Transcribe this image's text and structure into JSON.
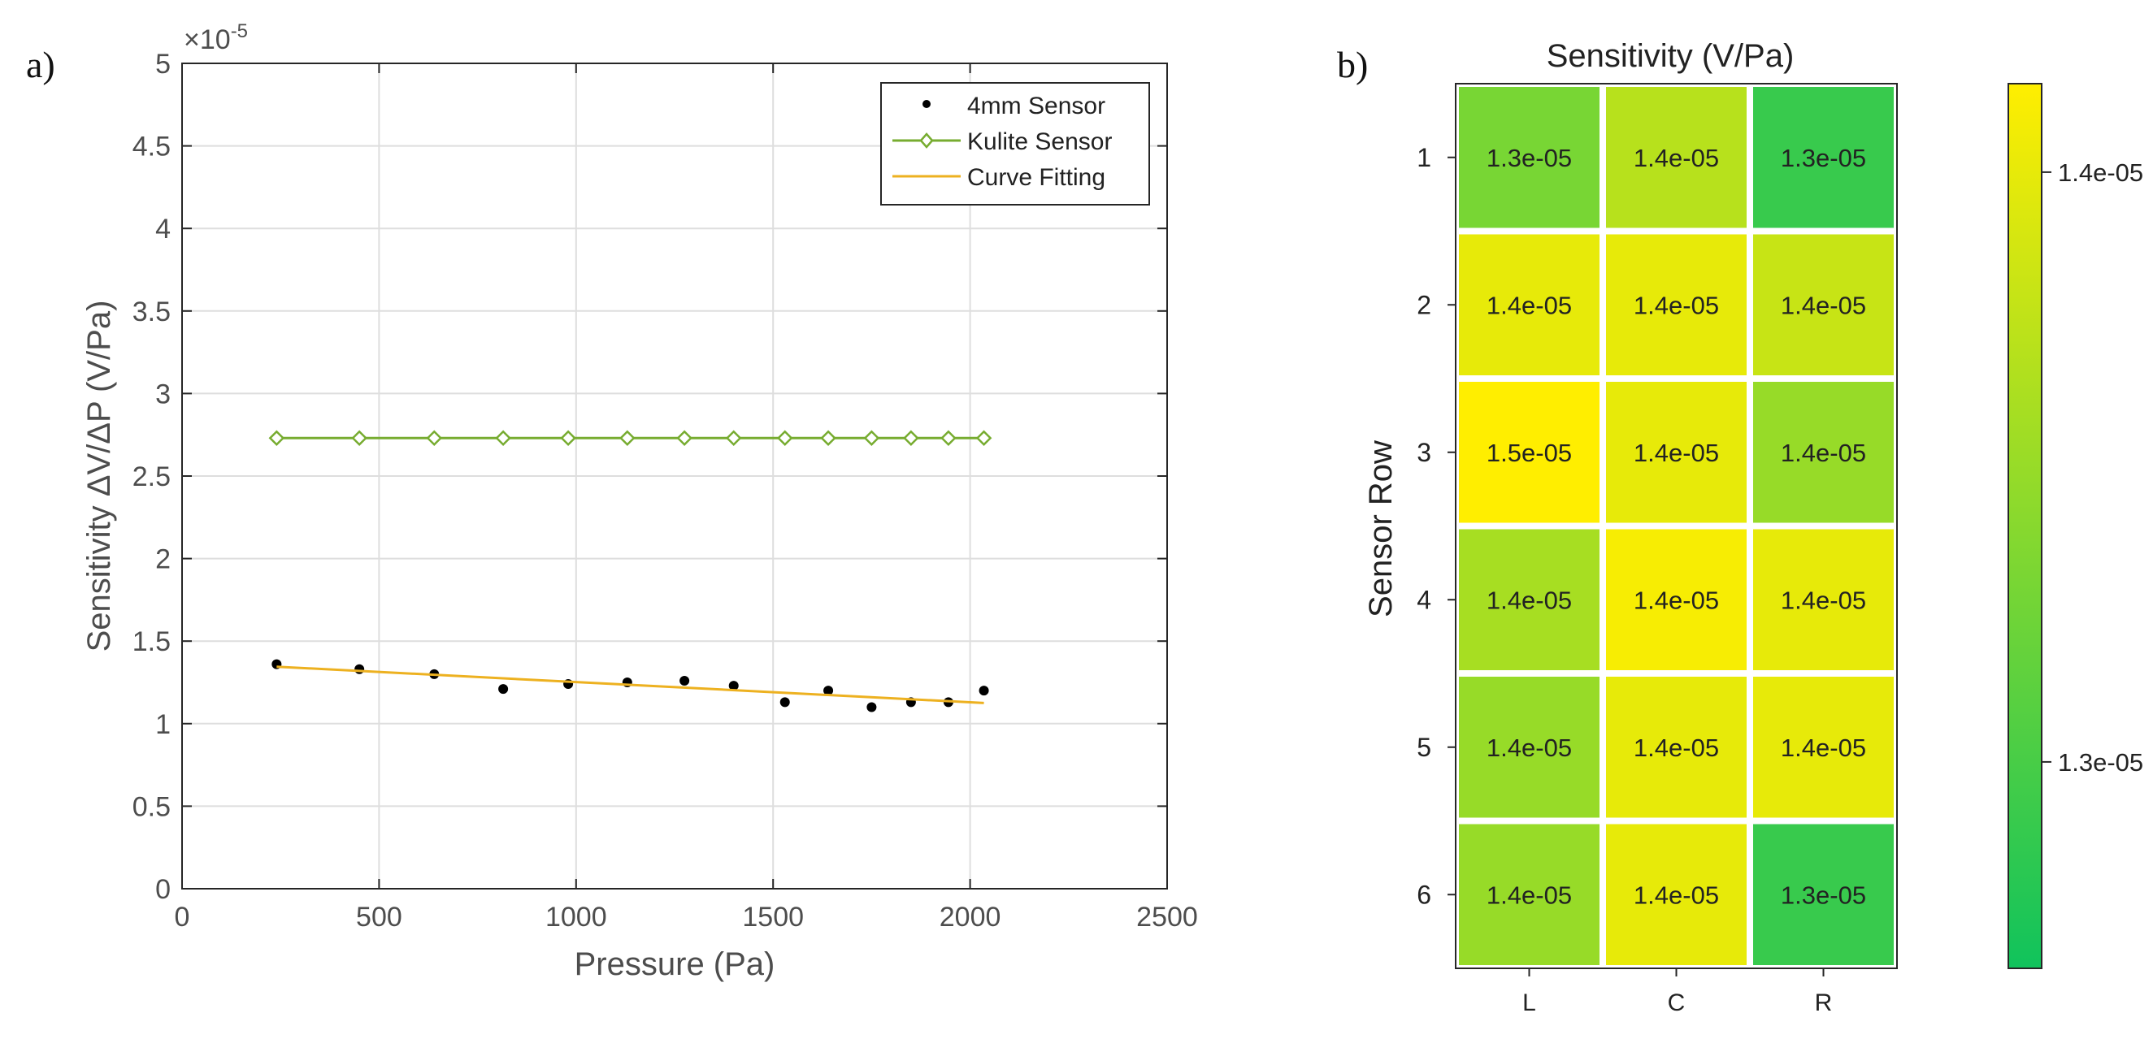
{
  "panel_a": {
    "label": "a)"
  },
  "panel_b": {
    "label": "b)"
  },
  "chart_data": [
    {
      "type": "line",
      "exponent_label": "×10",
      "exponent_power": "-5",
      "xlabel": "Pressure (Pa)",
      "ylabel": "Sensitivity  ΔV/ΔP (V/Pa)",
      "xlim": [
        0,
        2500
      ],
      "ylim": [
        0,
        5
      ],
      "grid": true,
      "legend_position": "top-right",
      "x_ticks": [
        0,
        500,
        1000,
        1500,
        2000,
        2500
      ],
      "x_tick_labels": [
        "0",
        "500",
        "1000",
        "1500",
        "2000",
        "2500"
      ],
      "y_ticks": [
        0,
        0.5,
        1,
        1.5,
        2,
        2.5,
        3,
        3.5,
        4,
        4.5,
        5
      ],
      "y_tick_labels": [
        "0",
        "0.5",
        "1",
        "1.5",
        "2",
        "2.5",
        "3",
        "3.5",
        "4",
        "4.5",
        "5"
      ],
      "series": [
        {
          "name": "4mm Sensor",
          "style": "markers",
          "color": "#000000",
          "x": [
            240,
            450,
            640,
            815,
            980,
            1130,
            1275,
            1400,
            1530,
            1640,
            1750,
            1850,
            1945,
            2035
          ],
          "y": [
            1.36,
            1.33,
            1.3,
            1.21,
            1.24,
            1.25,
            1.26,
            1.23,
            1.13,
            1.2,
            1.1,
            1.13,
            1.13,
            1.2
          ]
        },
        {
          "name": "Kulite Sensor",
          "style": "line-diamond",
          "color": "#77ac30",
          "x": [
            240,
            450,
            640,
            815,
            980,
            1130,
            1275,
            1400,
            1530,
            1640,
            1750,
            1850,
            1945,
            2035
          ],
          "y": [
            2.73,
            2.73,
            2.73,
            2.73,
            2.73,
            2.73,
            2.73,
            2.73,
            2.73,
            2.73,
            2.73,
            2.73,
            2.73,
            2.73
          ]
        },
        {
          "name": "Curve Fitting",
          "style": "line",
          "color": "#edb120",
          "x": [
            240,
            2035
          ],
          "y": [
            1.345,
            1.125
          ]
        }
      ]
    },
    {
      "type": "heatmap",
      "title": "Sensitivity (V/Pa)",
      "ylabel": "Sensor Row",
      "xlabel": "",
      "columns": [
        "L",
        "C",
        "R"
      ],
      "rows": [
        "1",
        "2",
        "3",
        "4",
        "5",
        "6"
      ],
      "values": [
        [
          1.33e-05,
          1.37e-05,
          1.29e-05
        ],
        [
          1.4e-05,
          1.4e-05,
          1.38e-05
        ],
        [
          1.45e-05,
          1.4e-05,
          1.35e-05
        ],
        [
          1.36e-05,
          1.41e-05,
          1.4e-05
        ],
        [
          1.35e-05,
          1.4e-05,
          1.4e-05
        ],
        [
          1.35e-05,
          1.4e-05,
          1.29e-05
        ]
      ],
      "labels": [
        [
          "1.3e-05",
          "1.4e-05",
          "1.3e-05"
        ],
        [
          "1.4e-05",
          "1.4e-05",
          "1.4e-05"
        ],
        [
          "1.5e-05",
          "1.4e-05",
          "1.4e-05"
        ],
        [
          "1.4e-05",
          "1.4e-05",
          "1.4e-05"
        ],
        [
          "1.4e-05",
          "1.4e-05",
          "1.4e-05"
        ],
        [
          "1.4e-05",
          "1.4e-05",
          "1.3e-05"
        ]
      ],
      "colormap": {
        "low": "#10c35c",
        "high": "#ffee00"
      },
      "colorbar": {
        "range": [
          1.265e-05,
          1.415e-05
        ],
        "ticks": [
          1.4e-05,
          1.3e-05
        ],
        "tick_labels": [
          "1.4e-05",
          "1.3e-05"
        ]
      }
    }
  ]
}
